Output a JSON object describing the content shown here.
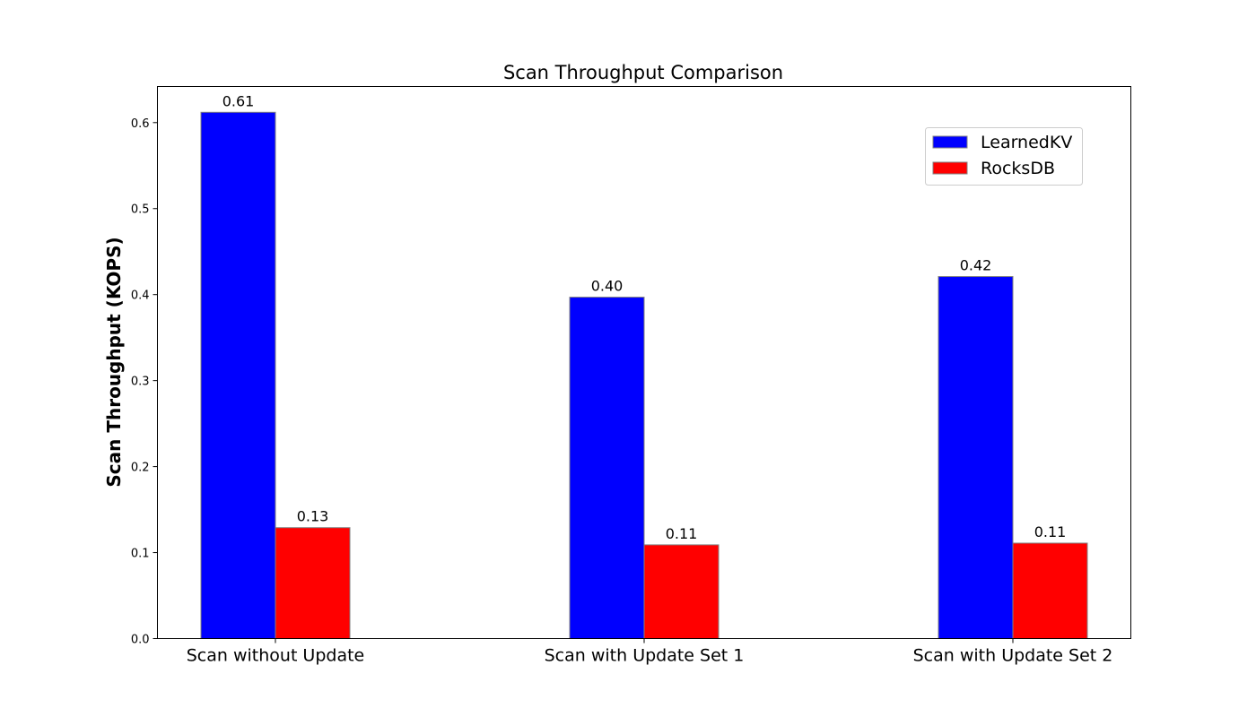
{
  "chart_data": {
    "type": "bar",
    "title": "Scan Throughput Comparison",
    "xlabel": "",
    "ylabel": "Scan Throughput (KOPS)",
    "categories": [
      "Scan without Update",
      "Scan with Update Set 1",
      "Scan with Update Set 2"
    ],
    "series": [
      {
        "name": "LearnedKV",
        "values": [
          0.612,
          0.397,
          0.421
        ],
        "labels": [
          "0.61",
          "0.40",
          "0.42"
        ],
        "color": "#0000ff"
      },
      {
        "name": "RocksDB",
        "values": [
          0.129,
          0.109,
          0.111
        ],
        "labels": [
          "0.13",
          "0.11",
          "0.11"
        ],
        "color": "#ff0000"
      }
    ],
    "ylim": [
      0,
      0.642
    ],
    "yticks": [
      {
        "value": 0.0,
        "label": "0.0"
      },
      {
        "value": 0.1,
        "label": "0.1"
      },
      {
        "value": 0.2,
        "label": "0.2"
      },
      {
        "value": 0.3,
        "label": "0.3"
      },
      {
        "value": 0.4,
        "label": "0.4"
      },
      {
        "value": 0.5,
        "label": "0.5"
      },
      {
        "value": 0.6,
        "label": "0.6"
      }
    ],
    "grid": false,
    "legend_position": "top-right",
    "bar_edge_color": "#808080"
  }
}
